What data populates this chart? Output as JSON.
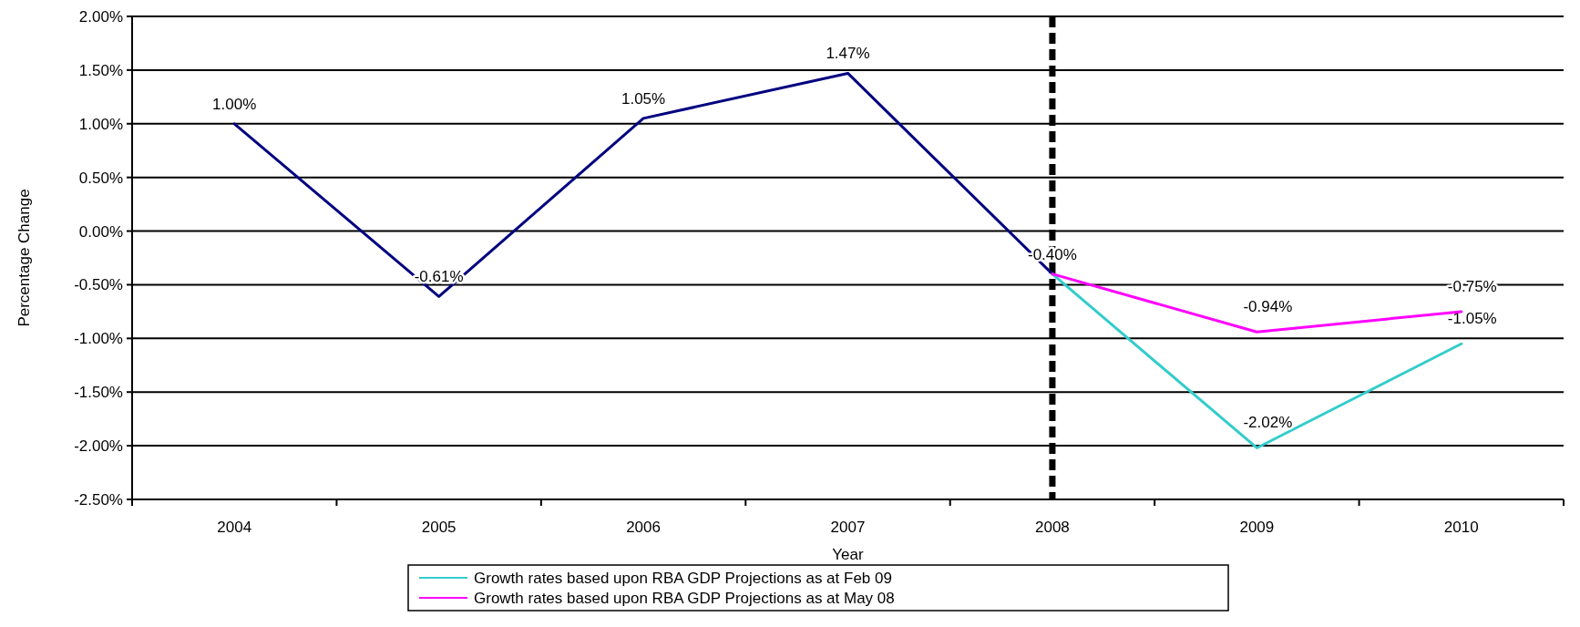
{
  "chart_data": {
    "type": "line",
    "xlabel": "Year",
    "ylabel": "Percentage Change",
    "categories": [
      "2004",
      "2005",
      "2006",
      "2007",
      "2008",
      "2009",
      "2010"
    ],
    "series": [
      {
        "color": "#000080",
        "values": [
          1.0,
          -0.61,
          1.05,
          1.47,
          -0.4,
          null,
          null
        ],
        "value_labels": [
          "1.00%",
          "-0.61%",
          "1.05%",
          "1.47%",
          "-0.40%",
          null,
          null
        ]
      },
      {
        "name": "Growth rates based upon RBA GDP Projections as at Feb 09",
        "color": "#33cccc",
        "values": [
          null,
          null,
          null,
          null,
          -0.4,
          -2.02,
          -1.05
        ],
        "value_labels": [
          null,
          null,
          null,
          null,
          null,
          "-2.02%",
          "-1.05%"
        ]
      },
      {
        "name": "Growth rates based upon RBA GDP Projections as at May 08",
        "color": "#ff00ff",
        "values": [
          null,
          null,
          null,
          null,
          -0.4,
          -0.94,
          -0.75
        ],
        "value_labels": [
          null,
          null,
          null,
          null,
          null,
          "-0.94%",
          "-0.75%"
        ]
      }
    ],
    "ylim": [
      -2.5,
      2.0
    ],
    "yticks": [
      {
        "value": -2.5,
        "label": "-2.50%"
      },
      {
        "value": -2.0,
        "label": "-2.00%"
      },
      {
        "value": -1.5,
        "label": "-1.50%"
      },
      {
        "value": -1.0,
        "label": "-1.00%"
      },
      {
        "value": -0.5,
        "label": "-0.50%"
      },
      {
        "value": 0,
        "label": "0.00%"
      },
      {
        "value": 0.5,
        "label": "0.50%"
      },
      {
        "value": 1.0,
        "label": "1.00%"
      },
      {
        "value": 1.5,
        "label": "1.50%"
      },
      {
        "value": 2.0,
        "label": "2.00%"
      }
    ],
    "grid": "y",
    "legend": "bottom",
    "marker": "none",
    "line_style": "solid",
    "ref_lines": [
      {
        "axis": "x",
        "value": "2008",
        "color": "#000000",
        "line_style": "dashed"
      }
    ]
  }
}
